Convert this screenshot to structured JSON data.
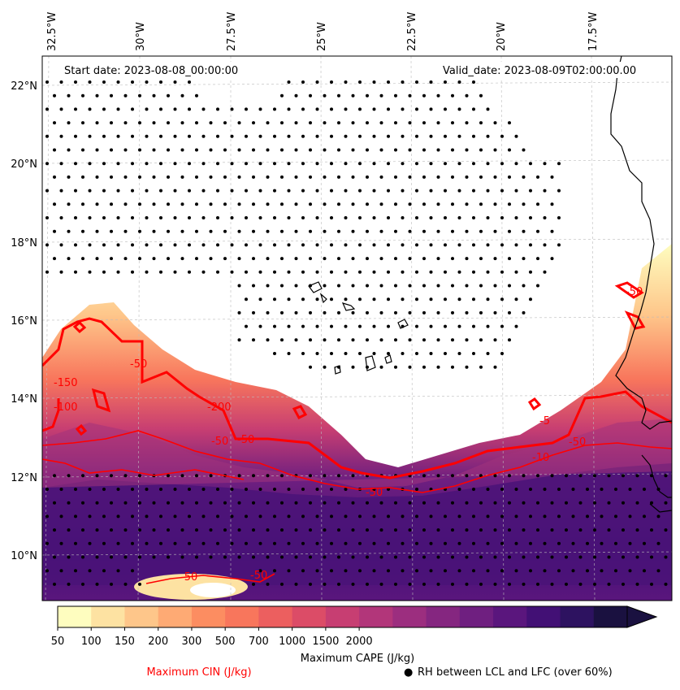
{
  "map": {
    "start_date": "Start date: 2023-08-08_00:00:00",
    "valid_date": "Valid_date: 2023-08-09T02:00:00.00",
    "lon_labels": [
      "32.5°W",
      "30°W",
      "27.5°W",
      "25°W",
      "22.5°W",
      "20°W",
      "17.5°W"
    ],
    "lat_labels": [
      "22°N",
      "20°N",
      "18°N",
      "16°N",
      "14°N",
      "12°N",
      "10°N"
    ],
    "contour_labels": [
      "-50",
      "-50",
      "-50",
      "-50",
      "-50",
      "-100",
      "-150",
      "-200",
      "-50",
      "-10",
      "-50",
      "-5",
      "-50"
    ]
  },
  "colorbar": {
    "title": "Maximum CAPE (J/kg)",
    "ticks": [
      "50",
      "100",
      "150",
      "200",
      "300",
      "500",
      "700",
      "1000",
      "1500",
      "2000"
    ],
    "colors": [
      "#fefdbf",
      "#fde2a2",
      "#fec68a",
      "#feaa74",
      "#fc8d61",
      "#f8765c",
      "#ec5f5f",
      "#dc4c67",
      "#c73e72",
      "#b2367a",
      "#9c2e7f",
      "#852680",
      "#6f1f80",
      "#5a167d",
      "#421075",
      "#2d1260",
      "#1a1140"
    ]
  },
  "legend": {
    "cin_label": "Maximum CIN (J/kg)",
    "cin_color": "#ff0000",
    "rh_marker": "●",
    "rh_label": "RH between LCL and LFC (over 60%)"
  }
}
